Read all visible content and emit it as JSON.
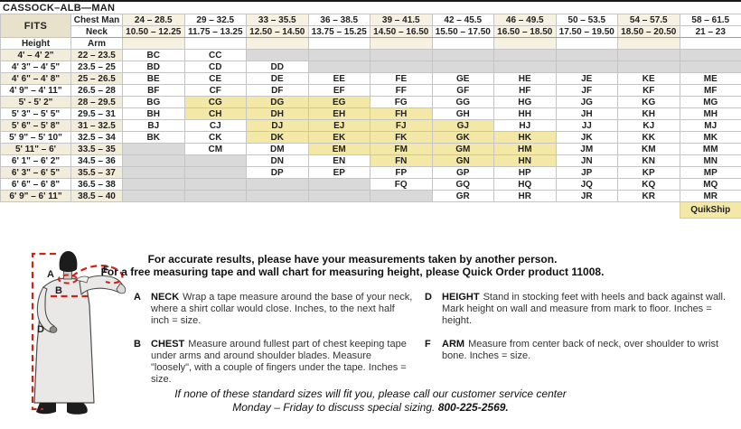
{
  "title": "CASSOCK–ALB—MAN",
  "table": {
    "fits_label": "FITS",
    "chest_label": "Chest Man",
    "neck_label": "Neck",
    "height_label": "Height",
    "arm_label": "Arm",
    "quickship_label": "QuikShip",
    "chest_ranges": [
      "24 – 28.5",
      "29 – 32.5",
      "33 – 35.5",
      "36 – 38.5",
      "39 – 41.5",
      "42 – 45.5",
      "46 – 49.5",
      "50 – 53.5",
      "54 – 57.5",
      "58 – 61.5"
    ],
    "neck_ranges": [
      "10.50 – 12.25",
      "11.75 – 13.25",
      "12.50 – 14.50",
      "13.75 – 15.25",
      "14.50 – 16.50",
      "15.50 – 17.50",
      "16.50 – 18.50",
      "17.50 – 19.50",
      "18.50 – 20.50",
      "21 – 23"
    ],
    "rows": [
      {
        "height": "4' – 4' 2\"",
        "arm": "22 – 23.5",
        "codes": [
          [
            "BC",
            "a"
          ],
          [
            "CC",
            "a"
          ],
          [
            "",
            "x"
          ],
          [
            "",
            "x"
          ],
          [
            "",
            "x"
          ],
          [
            "",
            "x"
          ],
          [
            "",
            "x"
          ],
          [
            "",
            "x"
          ],
          [
            "",
            "x"
          ],
          [
            "",
            "x"
          ]
        ]
      },
      {
        "height": "4' 3\" – 4' 5\"",
        "arm": "23.5 – 25",
        "codes": [
          [
            "BD",
            "a"
          ],
          [
            "CD",
            "a"
          ],
          [
            "DD",
            "a"
          ],
          [
            "",
            "x"
          ],
          [
            "",
            "x"
          ],
          [
            "",
            "x"
          ],
          [
            "",
            "x"
          ],
          [
            "",
            "x"
          ],
          [
            "",
            "x"
          ],
          [
            "",
            "x"
          ]
        ]
      },
      {
        "height": "4' 6\" – 4' 8\"",
        "arm": "25 – 26.5",
        "codes": [
          [
            "BE",
            "a"
          ],
          [
            "CE",
            "a"
          ],
          [
            "DE",
            "a"
          ],
          [
            "EE",
            "a"
          ],
          [
            "FE",
            "a"
          ],
          [
            "GE",
            "a"
          ],
          [
            "HE",
            "a"
          ],
          [
            "JE",
            "a"
          ],
          [
            "KE",
            "a"
          ],
          [
            "ME",
            "a"
          ]
        ]
      },
      {
        "height": "4' 9\" – 4' 11\"",
        "arm": "26.5 – 28",
        "codes": [
          [
            "BF",
            "a"
          ],
          [
            "CF",
            "a"
          ],
          [
            "DF",
            "a"
          ],
          [
            "EF",
            "a"
          ],
          [
            "FF",
            "a"
          ],
          [
            "GF",
            "a"
          ],
          [
            "HF",
            "a"
          ],
          [
            "JF",
            "a"
          ],
          [
            "KF",
            "a"
          ],
          [
            "MF",
            "a"
          ]
        ]
      },
      {
        "height": "5' - 5' 2\"",
        "arm": "28 – 29.5",
        "codes": [
          [
            "BG",
            "a"
          ],
          [
            "CG",
            "q"
          ],
          [
            "DG",
            "q"
          ],
          [
            "EG",
            "q"
          ],
          [
            "FG",
            "a"
          ],
          [
            "GG",
            "a"
          ],
          [
            "HG",
            "a"
          ],
          [
            "JG",
            "a"
          ],
          [
            "KG",
            "a"
          ],
          [
            "MG",
            "a"
          ]
        ]
      },
      {
        "height": "5' 3\" – 5' 5\"",
        "arm": "29.5 – 31",
        "codes": [
          [
            "BH",
            "a"
          ],
          [
            "CH",
            "q"
          ],
          [
            "DH",
            "q"
          ],
          [
            "EH",
            "q"
          ],
          [
            "FH",
            "q"
          ],
          [
            "GH",
            "a"
          ],
          [
            "HH",
            "a"
          ],
          [
            "JH",
            "a"
          ],
          [
            "KH",
            "a"
          ],
          [
            "MH",
            "a"
          ]
        ]
      },
      {
        "height": "5' 6\" – 5' 8\"",
        "arm": "31 – 32.5",
        "codes": [
          [
            "BJ",
            "a"
          ],
          [
            "CJ",
            "a"
          ],
          [
            "DJ",
            "q"
          ],
          [
            "EJ",
            "q"
          ],
          [
            "FJ",
            "q"
          ],
          [
            "GJ",
            "q"
          ],
          [
            "HJ",
            "a"
          ],
          [
            "JJ",
            "a"
          ],
          [
            "KJ",
            "a"
          ],
          [
            "MJ",
            "a"
          ]
        ]
      },
      {
        "height": "5' 9\" – 5' 10\"",
        "arm": "32.5 – 34",
        "codes": [
          [
            "BK",
            "a"
          ],
          [
            "CK",
            "a"
          ],
          [
            "DK",
            "q"
          ],
          [
            "EK",
            "q"
          ],
          [
            "FK",
            "q"
          ],
          [
            "GK",
            "q"
          ],
          [
            "HK",
            "q"
          ],
          [
            "JK",
            "a"
          ],
          [
            "KK",
            "a"
          ],
          [
            "MK",
            "a"
          ]
        ]
      },
      {
        "height": "5' 11\" – 6'",
        "arm": "33.5 – 35",
        "codes": [
          [
            "",
            "x"
          ],
          [
            "CM",
            "a"
          ],
          [
            "DM",
            "a"
          ],
          [
            "EM",
            "q"
          ],
          [
            "FM",
            "q"
          ],
          [
            "GM",
            "q"
          ],
          [
            "HM",
            "q"
          ],
          [
            "JM",
            "a"
          ],
          [
            "KM",
            "a"
          ],
          [
            "MM",
            "a"
          ]
        ]
      },
      {
        "height": "6' 1\" – 6' 2\"",
        "arm": "34.5 – 36",
        "codes": [
          [
            "",
            "x"
          ],
          [
            "",
            "x"
          ],
          [
            "DN",
            "a"
          ],
          [
            "EN",
            "a"
          ],
          [
            "FN",
            "q"
          ],
          [
            "GN",
            "q"
          ],
          [
            "HN",
            "q"
          ],
          [
            "JN",
            "a"
          ],
          [
            "KN",
            "a"
          ],
          [
            "MN",
            "a"
          ]
        ]
      },
      {
        "height": "6' 3\" – 6' 5\"",
        "arm": "35.5 – 37",
        "codes": [
          [
            "",
            "x"
          ],
          [
            "",
            "x"
          ],
          [
            "DP",
            "a"
          ],
          [
            "EP",
            "a"
          ],
          [
            "FP",
            "a"
          ],
          [
            "GP",
            "a"
          ],
          [
            "HP",
            "a"
          ],
          [
            "JP",
            "a"
          ],
          [
            "KP",
            "a"
          ],
          [
            "MP",
            "a"
          ]
        ]
      },
      {
        "height": "6' 6\" – 6' 8\"",
        "arm": "36.5 – 38",
        "codes": [
          [
            "",
            "x"
          ],
          [
            "",
            "x"
          ],
          [
            "",
            "x"
          ],
          [
            "",
            "x"
          ],
          [
            "FQ",
            "a"
          ],
          [
            "GQ",
            "a"
          ],
          [
            "HQ",
            "a"
          ],
          [
            "JQ",
            "a"
          ],
          [
            "KQ",
            "a"
          ],
          [
            "MQ",
            "a"
          ]
        ]
      },
      {
        "height": "6' 9\" – 6' 11\"",
        "arm": "38.5 – 40",
        "codes": [
          [
            "",
            "x"
          ],
          [
            "",
            "x"
          ],
          [
            "",
            "x"
          ],
          [
            "",
            "x"
          ],
          [
            "",
            "x"
          ],
          [
            "GR",
            "a"
          ],
          [
            "HR",
            "a"
          ],
          [
            "JR",
            "a"
          ],
          [
            "KR",
            "a"
          ],
          [
            "MR",
            "a"
          ]
        ]
      }
    ]
  },
  "notes": {
    "line1": "For accurate results, please have your measurements taken by another person.",
    "line2": "For a free measuring tape and wall chart for measuring height, please Quick Order product 11008."
  },
  "instructions": {
    "left": [
      {
        "key": "A",
        "term": "NECK",
        "text": "Wrap a tape measure around the base of your neck, where a shirt collar would close. Inches, to the next half inch = size."
      },
      {
        "key": "B",
        "term": "CHEST",
        "text": "Measure around fullest part of chest keeping tape under arms and around shoulder blades. Measure \"loosely\", with a couple of fingers under the tape. Inches = size."
      }
    ],
    "right": [
      {
        "key": "D",
        "term": "HEIGHT",
        "text": "Stand in stocking feet with heels and back against wall. Mark height on wall and measure from mark to floor. Inches = height."
      },
      {
        "key": "F",
        "term": "ARM",
        "text": "Measure from center back of neck, over shoulder to wrist bone. Inches = size."
      }
    ]
  },
  "footer": {
    "line1": "If none of these standard sizes will fit you, please call our customer service center",
    "line2": "Monday – Friday to discuss special sizing.",
    "phone": "800-225-2569."
  },
  "figure": {
    "labels": {
      "neck": "A",
      "chest": "B",
      "height": "D",
      "arm": "F"
    }
  },
  "colors": {
    "quickship": "#f3e8a6",
    "unavailable": "#d9d9d9",
    "header_cream": "#f6f1e0",
    "row_cream": "#f2edda",
    "fits_cream": "#e8e2cb",
    "accent_red": "#cc2418"
  }
}
